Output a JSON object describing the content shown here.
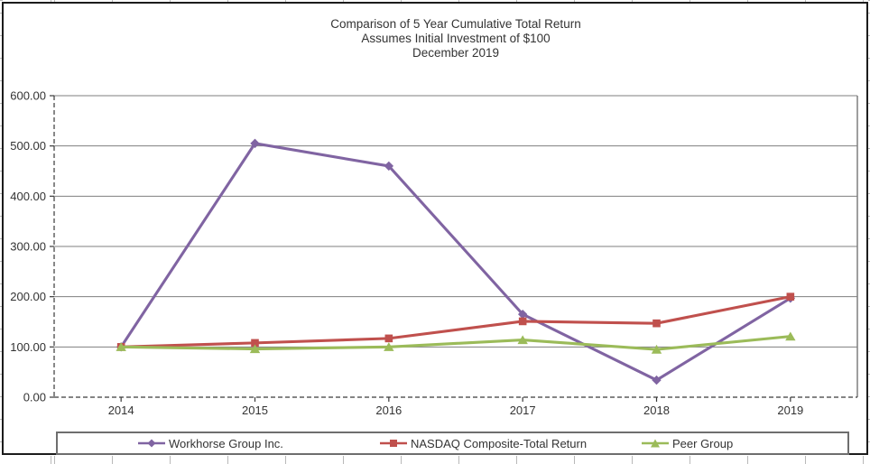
{
  "title": {
    "line1": "Comparison of 5 Year Cumulative Total Return",
    "line2": "Assumes Initial Investment of $100",
    "line3": "December 2019"
  },
  "chart_data": {
    "type": "line",
    "title": "Comparison of 5 Year Cumulative Total Return",
    "subtitle": "Assumes Initial Investment of $100",
    "period_label": "December 2019",
    "categories": [
      "2014",
      "2015",
      "2016",
      "2017",
      "2018",
      "2019"
    ],
    "series": [
      {
        "name": "Workhorse Group Inc.",
        "color": "#8064A2",
        "marker": "diamond",
        "values": [
          100,
          505,
          460,
          165,
          34,
          197
        ]
      },
      {
        "name": "NASDAQ Composite-Total Return",
        "color": "#C0504D",
        "marker": "square",
        "values": [
          100,
          108,
          117,
          151,
          147,
          200
        ]
      },
      {
        "name": "Peer Group",
        "color": "#9BBB59",
        "marker": "triangle",
        "values": [
          100,
          96,
          100,
          114,
          95,
          121
        ]
      }
    ],
    "ylim": [
      0,
      600
    ],
    "ytick_step": 100,
    "yticks": [
      "0.00",
      "100.00",
      "200.00",
      "300.00",
      "400.00",
      "500.00",
      "600.00"
    ],
    "grid": "horizontal",
    "legend_position": "bottom",
    "xlabel": "",
    "ylabel": ""
  },
  "colors": {
    "workhorse": "#8064A2",
    "nasdaq": "#C0504D",
    "peer": "#9BBB59",
    "gridline": "#7f7f7f",
    "axis": "#3a3a3a",
    "text": "#333333",
    "frame": "#1c1c1c",
    "legend_border": "#6e6e6e"
  }
}
